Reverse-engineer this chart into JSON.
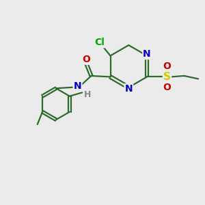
{
  "bg_color": "#ebebeb",
  "bond_color": "#2d6b2d",
  "bond_width": 1.6,
  "atom_colors": {
    "N": "#0000cc",
    "O": "#cc0000",
    "S": "#cccc00",
    "Cl": "#00aa00",
    "C": "#2d6b2d",
    "H": "#888888"
  },
  "font_size": 10,
  "figsize": [
    3.0,
    3.0
  ],
  "dpi": 100
}
